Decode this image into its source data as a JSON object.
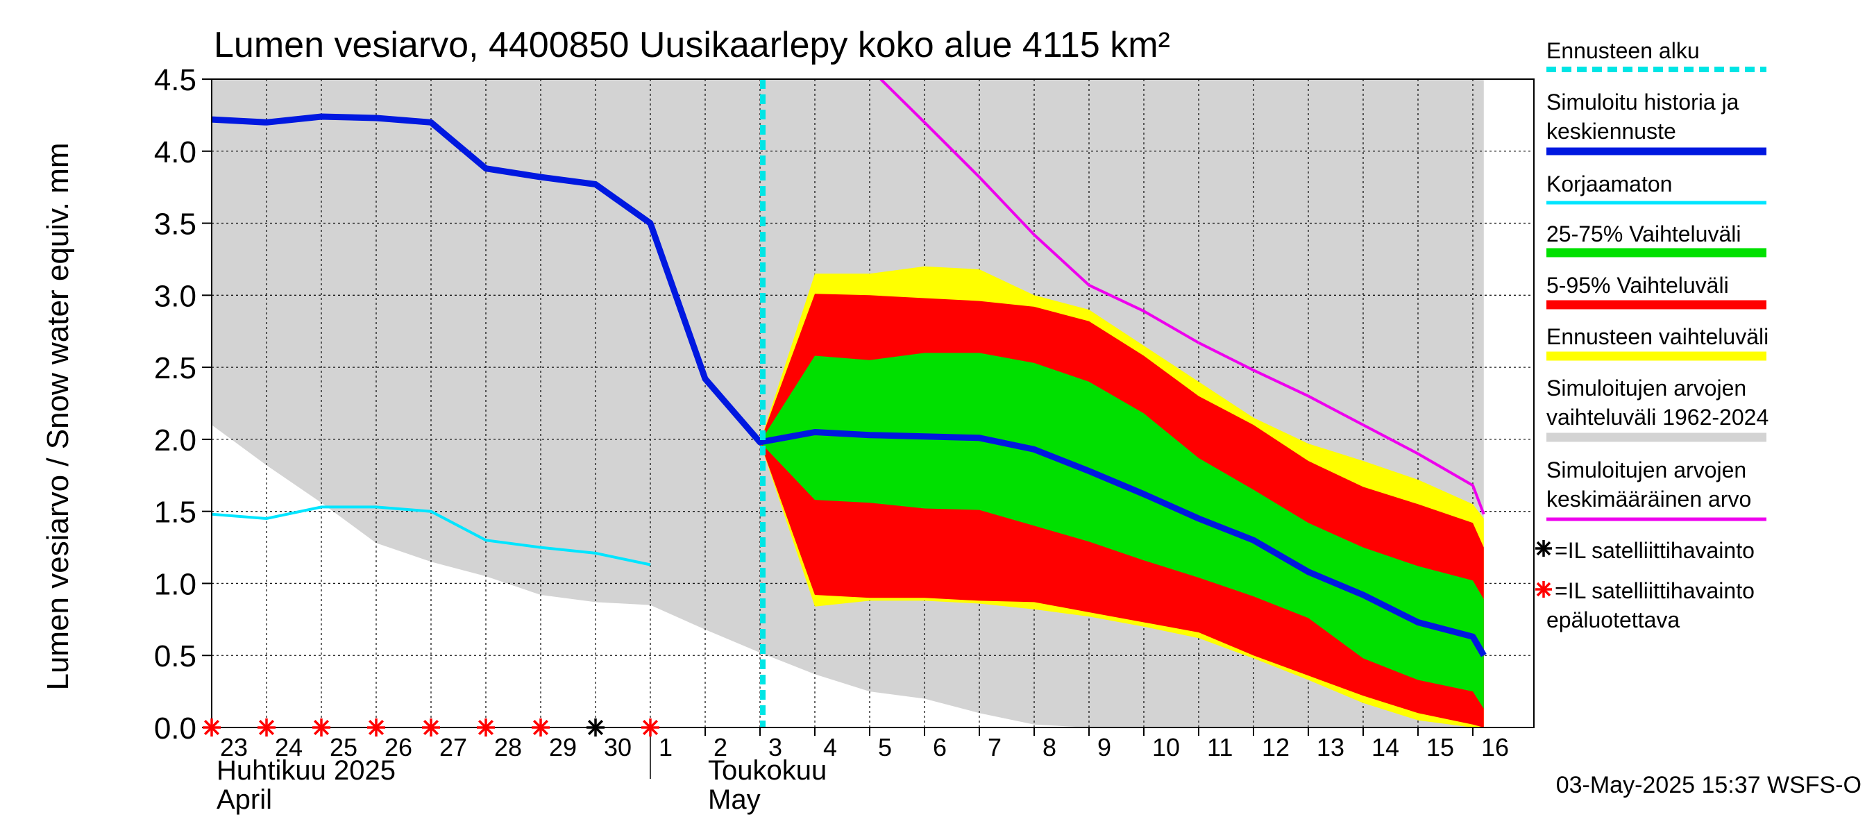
{
  "chart_data": {
    "type": "area",
    "title": "Lumen vesiarvo, 4400850 Uusikaarlepy koko alue 4115 km²",
    "ylabel": "Lumen vesiarvo / Snow water equiv.    mm",
    "ylim": [
      0,
      4.5
    ],
    "yticks": [
      "0.0",
      "0.5",
      "1.0",
      "1.5",
      "2.0",
      "2.5",
      "3.0",
      "3.5",
      "4.0",
      "4.5"
    ],
    "x_days": [
      "23",
      "24",
      "25",
      "26",
      "27",
      "28",
      "29",
      "30",
      "1",
      "2",
      "3",
      "4",
      "5",
      "6",
      "7",
      "8",
      "9",
      "10",
      "11",
      "12",
      "13",
      "14",
      "15",
      "16"
    ],
    "month_labels": {
      "april_fi": "Huhtikuu  2025",
      "april_en": "April",
      "may_fi": "Toukokuu",
      "may_en": "May"
    },
    "forecast_start_day_index": 10,
    "legend": {
      "forecast_start": "Ennusteen alku",
      "simulated_history_1": "Simuloitu historia ja",
      "simulated_history_2": "keskiennuste",
      "uncorrected": "Korjaamaton",
      "range_25_75": "25-75% Vaihteluväli",
      "range_5_95": "5-95% Vaihteluväli",
      "forecast_range": "Ennusteen vaihteluväli",
      "sim_range_1": "Simuloitujen arvojen",
      "sim_range_2": "vaihteluväli 1962-2024",
      "sim_mean_1": "Simuloitujen arvojen",
      "sim_mean_2": "keskimääräinen arvo",
      "sat_obs": "=IL satelliittihavainto",
      "sat_unreliable_1": "=IL satelliittihavainto",
      "sat_unreliable_2": "epäluotettava"
    },
    "colors": {
      "history": "#0018e0",
      "uncorrected": "#00e5ff",
      "range_25_75": "#00e000",
      "range_5_95": "#ff0000",
      "forecast_range": "#ffff00",
      "sim_range": "#d3d3d3",
      "sim_mean": "#ee00ee",
      "forecast_start": "#00e5e5",
      "sat_obs": "#000000",
      "sat_unreliable": "#ff0000"
    },
    "series": {
      "sim_range_upper": [
        [
          -0.2,
          4.5
        ],
        [
          23.2,
          4.5
        ],
        [
          23.2,
          1.45
        ]
      ],
      "sim_range_lower": [
        [
          -0.2,
          2.12
        ],
        [
          0,
          2.1
        ],
        [
          1,
          1.82
        ],
        [
          2,
          1.56
        ],
        [
          3,
          1.28
        ],
        [
          4,
          1.15
        ],
        [
          5,
          1.05
        ],
        [
          6,
          0.92
        ],
        [
          7,
          0.87
        ],
        [
          8,
          0.85
        ],
        [
          9,
          0.68
        ],
        [
          10,
          0.52
        ],
        [
          11,
          0.37
        ],
        [
          12,
          0.25
        ],
        [
          13,
          0.2
        ],
        [
          14,
          0.1
        ],
        [
          15,
          0.02
        ],
        [
          16,
          0
        ],
        [
          23.2,
          0
        ]
      ],
      "forecast_range_upper": [
        [
          10,
          1.98
        ],
        [
          11,
          3.15
        ],
        [
          12,
          3.15
        ],
        [
          13,
          3.2
        ],
        [
          14,
          3.18
        ],
        [
          15,
          3.0
        ],
        [
          16,
          2.9
        ],
        [
          17,
          2.65
        ],
        [
          18,
          2.4
        ],
        [
          19,
          2.15
        ],
        [
          20,
          1.97
        ],
        [
          21,
          1.85
        ],
        [
          22,
          1.72
        ],
        [
          23,
          1.55
        ],
        [
          23.2,
          1.45
        ]
      ],
      "forecast_range_lower": [
        [
          10,
          1.98
        ],
        [
          11,
          0.84
        ],
        [
          12,
          0.88
        ],
        [
          13,
          0.88
        ],
        [
          14,
          0.86
        ],
        [
          15,
          0.82
        ],
        [
          16,
          0.77
        ],
        [
          17,
          0.7
        ],
        [
          18,
          0.62
        ],
        [
          19,
          0.48
        ],
        [
          20,
          0.33
        ],
        [
          21,
          0.17
        ],
        [
          22,
          0.05
        ],
        [
          23,
          0
        ],
        [
          23.2,
          0
        ]
      ],
      "p95": [
        [
          10,
          1.98
        ],
        [
          11,
          3.01
        ],
        [
          12,
          3.0
        ],
        [
          13,
          2.98
        ],
        [
          14,
          2.96
        ],
        [
          15,
          2.92
        ],
        [
          16,
          2.82
        ],
        [
          17,
          2.58
        ],
        [
          18,
          2.3
        ],
        [
          19,
          2.1
        ],
        [
          20,
          1.85
        ],
        [
          21,
          1.67
        ],
        [
          22,
          1.55
        ],
        [
          23,
          1.42
        ],
        [
          23.2,
          1.25
        ]
      ],
      "p5": [
        [
          10,
          1.98
        ],
        [
          11,
          0.92
        ],
        [
          12,
          0.9
        ],
        [
          13,
          0.9
        ],
        [
          14,
          0.88
        ],
        [
          15,
          0.87
        ],
        [
          16,
          0.8
        ],
        [
          17,
          0.73
        ],
        [
          18,
          0.66
        ],
        [
          19,
          0.5
        ],
        [
          20,
          0.36
        ],
        [
          21,
          0.22
        ],
        [
          22,
          0.1
        ],
        [
          23,
          0.02
        ],
        [
          23.2,
          0
        ]
      ],
      "p75": [
        [
          10,
          1.98
        ],
        [
          11,
          2.58
        ],
        [
          12,
          2.55
        ],
        [
          13,
          2.6
        ],
        [
          14,
          2.6
        ],
        [
          15,
          2.53
        ],
        [
          16,
          2.4
        ],
        [
          17,
          2.18
        ],
        [
          18,
          1.87
        ],
        [
          19,
          1.65
        ],
        [
          20,
          1.42
        ],
        [
          21,
          1.25
        ],
        [
          22,
          1.12
        ],
        [
          23,
          1.02
        ],
        [
          23.2,
          0.89
        ]
      ],
      "p25": [
        [
          10,
          1.98
        ],
        [
          11,
          1.58
        ],
        [
          12,
          1.56
        ],
        [
          13,
          1.52
        ],
        [
          14,
          1.51
        ],
        [
          15,
          1.4
        ],
        [
          16,
          1.29
        ],
        [
          17,
          1.16
        ],
        [
          18,
          1.04
        ],
        [
          19,
          0.91
        ],
        [
          20,
          0.76
        ],
        [
          21,
          0.48
        ],
        [
          22,
          0.33
        ],
        [
          23,
          0.25
        ],
        [
          23.2,
          0.13
        ]
      ],
      "history_mean": [
        [
          0,
          4.22
        ],
        [
          1,
          4.2
        ],
        [
          2,
          4.24
        ],
        [
          3,
          4.23
        ],
        [
          4,
          4.2
        ],
        [
          5,
          3.88
        ],
        [
          6,
          3.82
        ],
        [
          7,
          3.77
        ],
        [
          8,
          3.5
        ],
        [
          9,
          2.42
        ],
        [
          10,
          1.98
        ],
        [
          11,
          2.05
        ],
        [
          12,
          2.03
        ],
        [
          13,
          2.02
        ],
        [
          14,
          2.01
        ],
        [
          15,
          1.93
        ],
        [
          16,
          1.78
        ],
        [
          17,
          1.62
        ],
        [
          18,
          1.45
        ],
        [
          19,
          1.3
        ],
        [
          20,
          1.08
        ],
        [
          21,
          0.92
        ],
        [
          22,
          0.73
        ],
        [
          23,
          0.63
        ],
        [
          23.2,
          0.5
        ]
      ],
      "uncorrected": [
        [
          0,
          1.48
        ],
        [
          1,
          1.45
        ],
        [
          2,
          1.53
        ],
        [
          3,
          1.53
        ],
        [
          4,
          1.5
        ],
        [
          5,
          1.3
        ],
        [
          6,
          1.25
        ],
        [
          7,
          1.21
        ],
        [
          8,
          1.13
        ]
      ],
      "sim_mean": [
        [
          12.2,
          4.5
        ],
        [
          13,
          4.2
        ],
        [
          14,
          3.82
        ],
        [
          15,
          3.42
        ],
        [
          16,
          3.07
        ],
        [
          17,
          2.89
        ],
        [
          18,
          2.67
        ],
        [
          19,
          2.48
        ],
        [
          20,
          2.3
        ],
        [
          21,
          2.1
        ],
        [
          22,
          1.9
        ],
        [
          23,
          1.68
        ],
        [
          23.2,
          1.48
        ]
      ],
      "sat_obs_days": [
        7
      ],
      "sat_unreliable_days": [
        0,
        1,
        2,
        3,
        4,
        5,
        6,
        8
      ]
    },
    "timestamp": "03-May-2025 15:37 WSFS-O"
  }
}
